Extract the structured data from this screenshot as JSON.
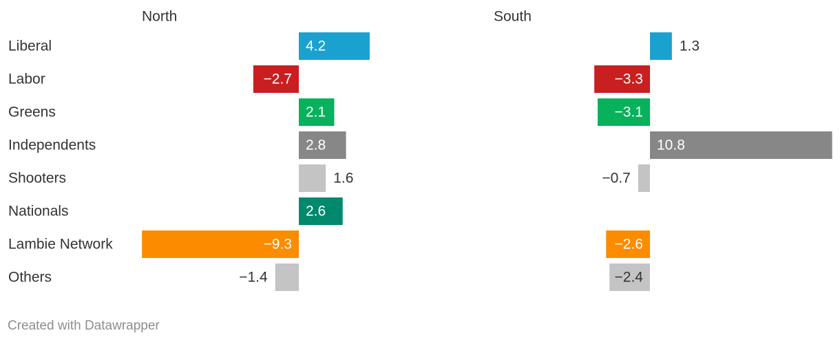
{
  "chart_data": {
    "type": "bar",
    "orientation": "horizontal",
    "categories": [
      "Liberal",
      "Labor",
      "Greens",
      "Independents",
      "Shooters",
      "Nationals",
      "Lambie Network",
      "Others"
    ],
    "colors": [
      "#1aa1cf",
      "#c91f20",
      "#08b15b",
      "#878787",
      "#c4c4c4",
      "#00896d",
      "#fb8c00",
      "#c4c4c4"
    ],
    "panels": [
      {
        "title": "North",
        "values": [
          4.2,
          -2.7,
          2.1,
          2.8,
          1.6,
          2.6,
          -9.3,
          -1.4
        ],
        "labels": [
          "4.2",
          "−2.7",
          "2.1",
          "2.8",
          "1.6",
          "2.6",
          "−9.3",
          "−1.4"
        ]
      },
      {
        "title": "South",
        "values": [
          1.3,
          -3.3,
          -3.1,
          10.8,
          -0.7,
          null,
          -2.6,
          -2.4
        ],
        "labels": [
          "1.3",
          "−3.3",
          "−3.1",
          "10.8",
          "−0.7",
          "",
          "−2.6",
          "−2.4"
        ]
      }
    ]
  },
  "footer": "Created with Datawrapper"
}
